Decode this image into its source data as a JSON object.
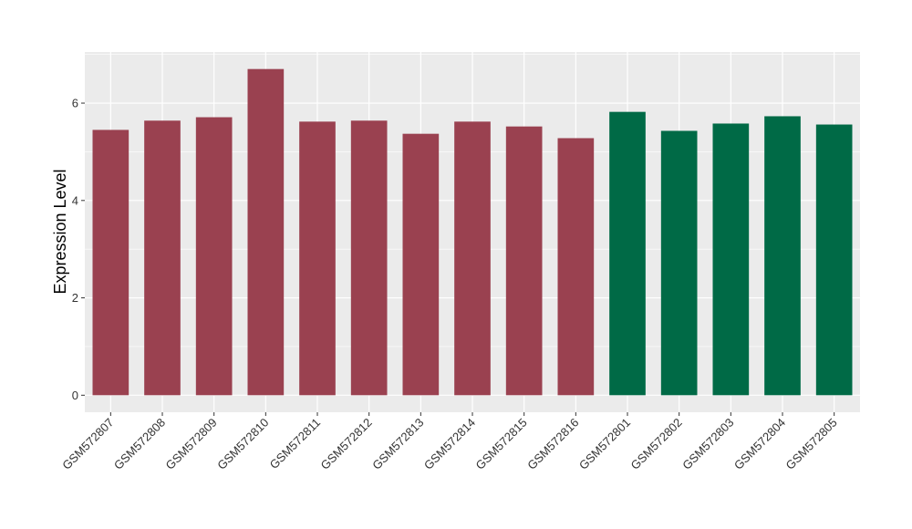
{
  "chart_data": {
    "type": "bar",
    "title": "",
    "xlabel": "",
    "ylabel": "Expression Level",
    "ylim": [
      -0.35,
      7.05
    ],
    "yticks": [
      0,
      2,
      4,
      6
    ],
    "grid": true,
    "legend": "none",
    "colors": {
      "group1": "#9A4150",
      "group2": "#006A46",
      "panel": "#EBEBEB",
      "gridline": "#FFFFFF"
    },
    "categories": [
      "GSM572807",
      "GSM572808",
      "GSM572809",
      "GSM572810",
      "GSM572811",
      "GSM572812",
      "GSM572813",
      "GSM572814",
      "GSM572815",
      "GSM572816",
      "GSM572801",
      "GSM572802",
      "GSM572803",
      "GSM572804",
      "GSM572805"
    ],
    "values": [
      5.45,
      5.64,
      5.71,
      6.7,
      5.62,
      5.64,
      5.37,
      5.62,
      5.52,
      5.28,
      5.82,
      5.43,
      5.58,
      5.73,
      5.56
    ],
    "groups": [
      1,
      1,
      1,
      1,
      1,
      1,
      1,
      1,
      1,
      1,
      2,
      2,
      2,
      2,
      2
    ]
  }
}
